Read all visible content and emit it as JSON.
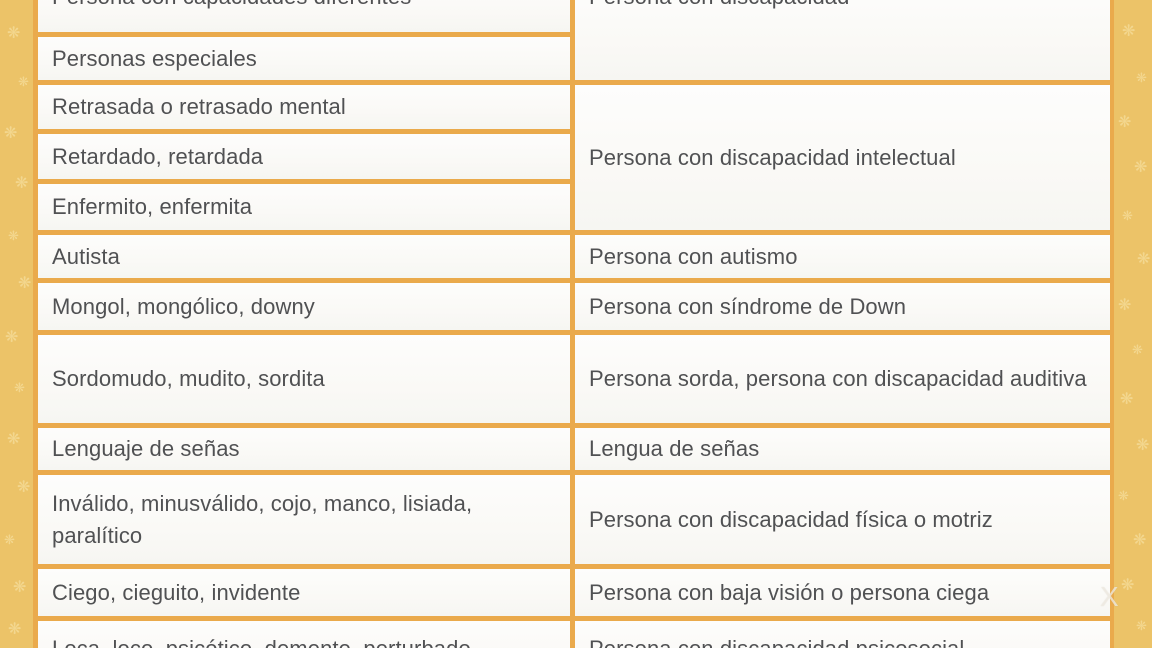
{
  "colors": {
    "band_background": "#ecc368",
    "band_decoration": "#f3d78f",
    "table_border": "#eaaa4c",
    "cell_background": "#faf9f6",
    "text": "#505153"
  },
  "decorations": {
    "snowflake_glyph": "❋",
    "watermark_text": "X"
  },
  "table": {
    "groups": [
      {
        "preferred_term": "Persona con discapacidad",
        "incorrect_terms": [
          "Persona con capacidades diferentes",
          "Personas especiales"
        ]
      },
      {
        "preferred_term": "Persona con discapacidad intelectual",
        "incorrect_terms": [
          "Retrasada o retrasado mental",
          "Retardado, retardada",
          "Enfermito, enfermita"
        ]
      },
      {
        "preferred_term": "Persona con autismo",
        "incorrect_terms": [
          "Autista"
        ]
      },
      {
        "preferred_term": "Persona con síndrome de Down",
        "incorrect_terms": [
          "Mongol, mongólico, downy"
        ]
      },
      {
        "preferred_term": "Persona sorda, persona con discapacidad auditiva",
        "incorrect_terms": [
          "Sordomudo, mudito, sordita"
        ]
      },
      {
        "preferred_term": "Lengua de señas",
        "incorrect_terms": [
          "Lenguaje de señas"
        ]
      },
      {
        "preferred_term": "Persona con discapacidad física o motriz",
        "incorrect_terms": [
          "Inválido, minusválido, cojo, manco, lisiada, paralítico"
        ]
      },
      {
        "preferred_term": "Persona con baja visión o persona ciega",
        "incorrect_terms": [
          "Ciego, cieguito, invidente"
        ]
      },
      {
        "preferred_term": "Persona con discapacidad psicosocial",
        "incorrect_terms": [
          "Loca, loco, psicótico, demente, perturbado"
        ]
      }
    ]
  }
}
